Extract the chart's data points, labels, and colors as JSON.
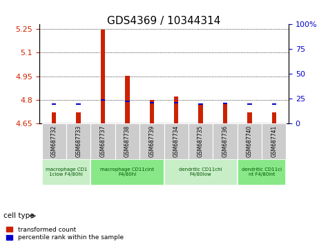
{
  "title": "GDS4369 / 10344314",
  "samples": [
    "GSM687732",
    "GSM687733",
    "GSM687737",
    "GSM687738",
    "GSM687739",
    "GSM687734",
    "GSM687735",
    "GSM687736",
    "GSM687740",
    "GSM687741"
  ],
  "red_values": [
    4.72,
    4.72,
    5.247,
    4.953,
    4.8,
    4.822,
    4.77,
    4.775,
    4.72,
    4.72
  ],
  "blue_values": [
    4.773,
    4.773,
    4.8,
    4.792,
    4.782,
    4.782,
    4.775,
    4.778,
    4.773,
    4.773
  ],
  "ylim_left": [
    4.65,
    5.28
  ],
  "ylim_right": [
    0,
    100
  ],
  "yticks_left": [
    4.65,
    4.8,
    4.95,
    5.1,
    5.25
  ],
  "yticks_right": [
    0,
    25,
    50,
    75,
    100
  ],
  "baseline": 4.65,
  "red_color": "#cc2200",
  "blue_color": "#0000cc",
  "bar_width": 0.18,
  "blue_marker_size": 0.008,
  "cell_groups": [
    {
      "start": 0,
      "end": 1,
      "label": "macrophage CD1\n1clow F4/80hi",
      "color": "#c8eec8"
    },
    {
      "start": 2,
      "end": 4,
      "label": "macrophage CD11cint\nF4/80hi",
      "color": "#88e888"
    },
    {
      "start": 5,
      "end": 7,
      "label": "dendritic CD11chi\nF4/80low",
      "color": "#c8eec8"
    },
    {
      "start": 8,
      "end": 9,
      "label": "dendritic CD11ci\nnt F4/80int",
      "color": "#88e888"
    }
  ],
  "legend_red": "transformed count",
  "legend_blue": "percentile rank within the sample",
  "cell_type_label": "cell type",
  "bg_color": "#ffffff",
  "plot_bg": "#ffffff",
  "left_tick_color": "#cc2200",
  "right_tick_color": "#0000cc",
  "xtick_bg": "#cccccc"
}
